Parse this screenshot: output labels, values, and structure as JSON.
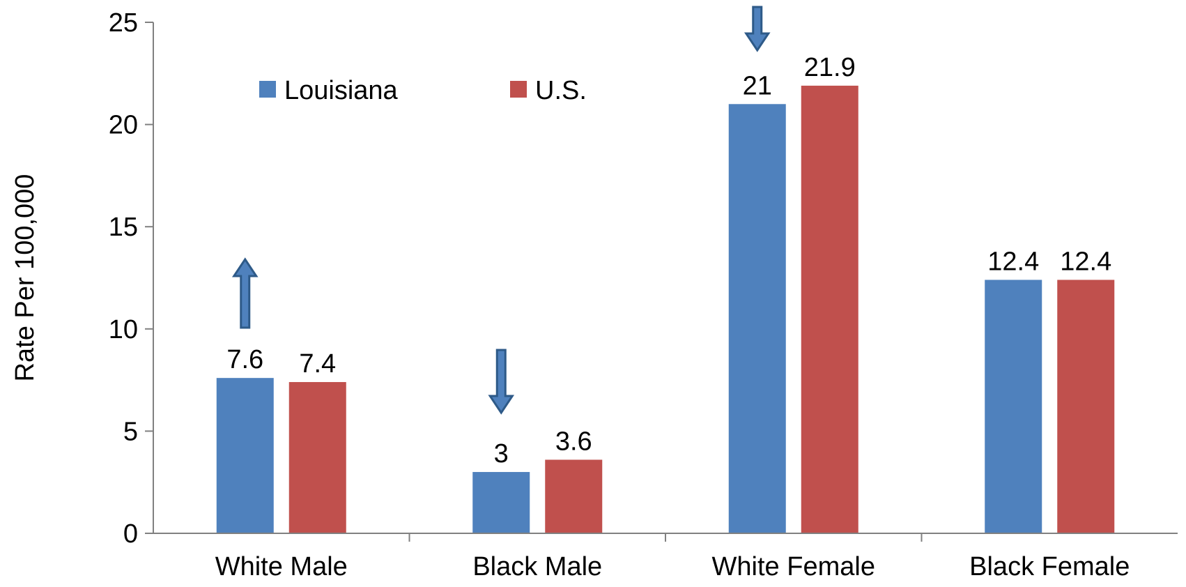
{
  "chart_data": {
    "type": "bar",
    "title": "",
    "xlabel": "",
    "ylabel": "Rate Per 100,000",
    "categories": [
      "White Male",
      "Black Male",
      "White Female",
      "Black Female"
    ],
    "series": [
      {
        "name": "Louisiana",
        "color": "#4F81BD",
        "values": [
          7.6,
          3,
          21,
          12.4
        ],
        "labels": [
          "7.6",
          "3",
          "21",
          "12.4"
        ]
      },
      {
        "name": "U.S.",
        "color": "#C0504D",
        "values": [
          7.4,
          3.6,
          21.9,
          12.4
        ],
        "labels": [
          "7.4",
          "3.6",
          "21.9",
          "12.4"
        ]
      }
    ],
    "ylim": [
      0,
      25
    ],
    "yticks": [
      "0",
      "5",
      "10",
      "15",
      "20",
      "25"
    ],
    "grid": false,
    "legend": "top-left",
    "annotations": [
      {
        "type": "arrow",
        "direction": "up",
        "category": "White Male",
        "color": "#2E5A88"
      },
      {
        "type": "arrow",
        "direction": "down",
        "category": "Black Male",
        "color": "#2E5A88"
      },
      {
        "type": "arrow",
        "direction": "down",
        "category": "White Female",
        "color": "#2E5A88"
      }
    ]
  }
}
